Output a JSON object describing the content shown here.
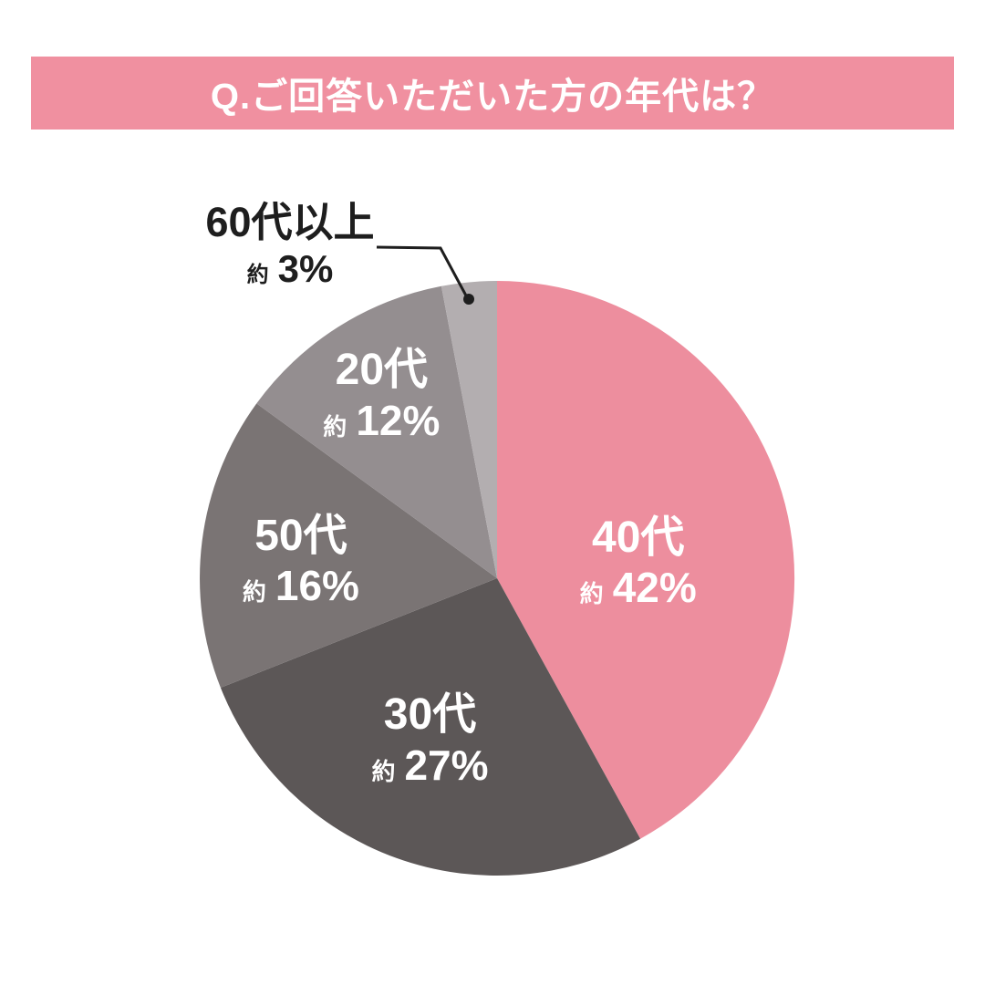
{
  "title": "Q.ご回答いただいた方の年代は？",
  "colors": {
    "background": "#FFFFFF",
    "banner_bg": "#F090A0",
    "banner_text": "#FFFFFF",
    "inside_label_text": "#FFFFFF",
    "outside_label_text": "#1E1E1E",
    "callout_line": "#1E1E1E"
  },
  "chart_data": {
    "type": "pie",
    "title": "Q.ご回答いただいた方の年代は？",
    "unit": "%",
    "approx_prefix": "約",
    "start_angle_deg": 0,
    "direction": "clockwise",
    "legend_position": "none",
    "slices": [
      {
        "label": "40代",
        "percent": 42,
        "value_text": "約 42%",
        "color": "#ED8E9E",
        "label_placement": "inside"
      },
      {
        "label": "30代",
        "percent": 27,
        "value_text": "約 27%",
        "color": "#5C5757",
        "label_placement": "inside"
      },
      {
        "label": "50代",
        "percent": 16,
        "value_text": "約 16%",
        "color": "#7A7474",
        "label_placement": "inside"
      },
      {
        "label": "20代",
        "percent": 12,
        "value_text": "約 12%",
        "color": "#948E90",
        "label_placement": "inside"
      },
      {
        "label": "60代以上",
        "percent": 3,
        "value_text": "約 3%",
        "color": "#B3AEB0",
        "label_placement": "outside-callout"
      }
    ]
  }
}
